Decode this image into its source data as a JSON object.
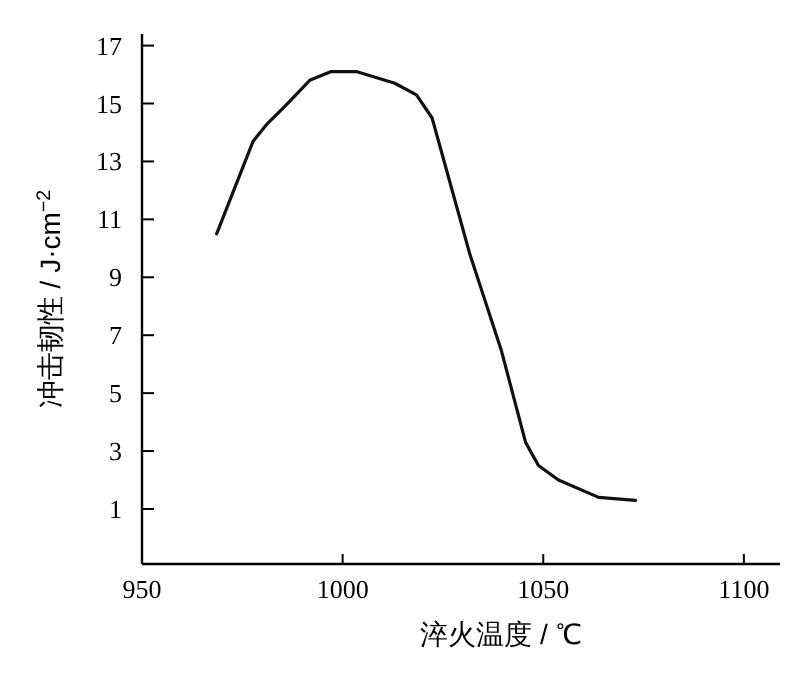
{
  "chart_data": {
    "type": "line",
    "xlabel": "淬火温度 / ℃",
    "ylabel": "冲击韧性 / J·cm$^{−2}$",
    "xlim": [
      950,
      1109
    ],
    "ylim": [
      -0.9,
      17.4
    ],
    "xticks": [
      950,
      1000,
      1050,
      1100
    ],
    "yticks": [
      1,
      3,
      5,
      7,
      9,
      11,
      13,
      15,
      17
    ],
    "marker": "none",
    "line_style": "solid",
    "series": [
      {
        "color": "#111111",
        "x": [
          968.6,
          977.7,
          981.2,
          985.6,
          991.8,
          997,
          1003.6,
          1013,
          1018.4,
          1022.3,
          1031.7,
          1039.5,
          1045.6,
          1048.8,
          1053.8,
          1063.8,
          1073
        ],
        "values": [
          10.5,
          13.7,
          14.3,
          14.9,
          15.8,
          16.1,
          16.1,
          15.7,
          15.3,
          14.5,
          9.8,
          6.5,
          3.3,
          2.5,
          2.0,
          1.4,
          1.3
        ]
      }
    ]
  }
}
